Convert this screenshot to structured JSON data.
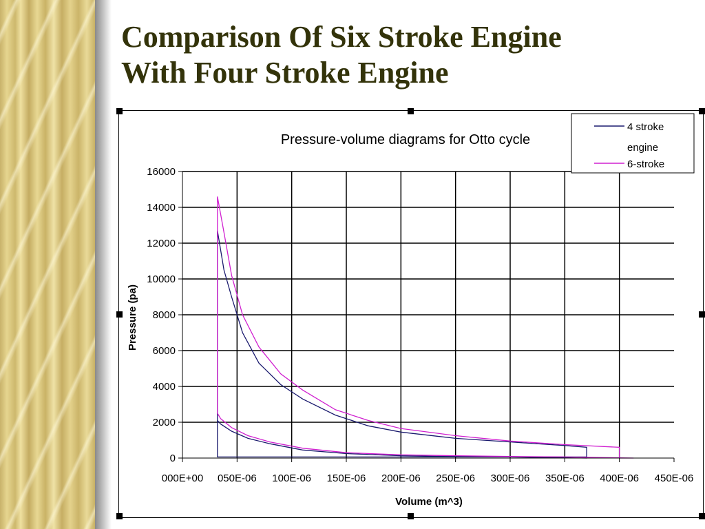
{
  "slide": {
    "title_line1": "Comparison Of Six Stroke Engine",
    "title_line2": "With Four Stroke Engine"
  },
  "chart_data": {
    "type": "line",
    "title": "Pressure-volume diagrams for Otto cycle",
    "xlabel": "Volume (m^3)",
    "ylabel": "Pressure (pa)",
    "xlim": [
      0,
      450
    ],
    "ylim": [
      0,
      16000
    ],
    "x_unit_suffix": "E-06",
    "x_tick_labels": [
      "000E+00",
      "050E-06",
      "100E-06",
      "150E-06",
      "200E-06",
      "250E-06",
      "300E-06",
      "350E-06",
      "400E-06",
      "450E-06"
    ],
    "y_tick_labels": [
      "0",
      "2000",
      "4000",
      "6000",
      "8000",
      "10000",
      "12000",
      "14000",
      "16000"
    ],
    "grid": true,
    "legend_position": "top-right",
    "series": [
      {
        "name": "4 stroke engine",
        "color": "#1a1a6e",
        "x": [
          32,
          32,
          38,
          45,
          55,
          70,
          90,
          110,
          140,
          170,
          200,
          250,
          300,
          350,
          370,
          370,
          300,
          250,
          200,
          150,
          110,
          80,
          60,
          45,
          35,
          32,
          32,
          100,
          180,
          240,
          300,
          370
        ],
        "y": [
          2100,
          12700,
          10500,
          9000,
          7000,
          5300,
          4100,
          3300,
          2400,
          1800,
          1450,
          1100,
          900,
          700,
          600,
          0,
          60,
          90,
          130,
          250,
          450,
          800,
          1100,
          1500,
          1900,
          2100,
          60,
          60,
          60,
          60,
          60,
          60
        ]
      },
      {
        "name": "6-stroke",
        "color": "#d020d0",
        "x": [
          32,
          32,
          38,
          45,
          55,
          70,
          90,
          110,
          140,
          170,
          200,
          250,
          300,
          350,
          400,
          400,
          413,
          350,
          300,
          250,
          200,
          150,
          110,
          80,
          60,
          45,
          35,
          32
        ],
        "y": [
          2500,
          14600,
          12600,
          10200,
          8000,
          6200,
          4700,
          3800,
          2700,
          2100,
          1650,
          1250,
          950,
          750,
          600,
          0,
          0,
          60,
          90,
          130,
          180,
          300,
          550,
          900,
          1250,
          1700,
          2200,
          2500
        ]
      }
    ]
  },
  "legend": {
    "item1_line1": "4 stroke",
    "item1_line2": "engine",
    "item2": "6-stroke"
  }
}
